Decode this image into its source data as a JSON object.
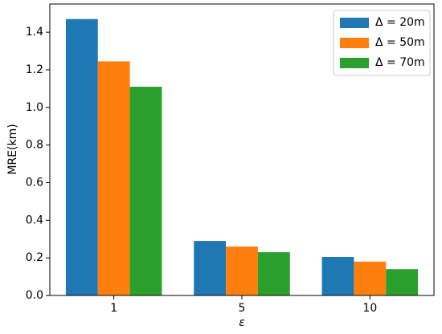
{
  "chart_data": {
    "type": "grouped_bar",
    "x_label": "ε",
    "y_label": "MRE(km)",
    "categories": [
      "1",
      "5",
      "10"
    ],
    "series": [
      {
        "name": "Δ = 20m",
        "color": "#1f77b4",
        "values": [
          1.47,
          0.29,
          0.205
        ]
      },
      {
        "name": "Δ = 50m",
        "color": "#ff7f0e",
        "values": [
          1.245,
          0.26,
          0.18
        ]
      },
      {
        "name": "Δ = 70m",
        "color": "#2ca02c",
        "values": [
          1.11,
          0.23,
          0.14
        ]
      }
    ],
    "ylim": [
      0,
      1.55
    ],
    "yticks": [
      {
        "value": 0,
        "label": "0.0"
      },
      0.2,
      0.4,
      0.6,
      0.8,
      {
        "value": 1,
        "label": "1.0"
      },
      1.2,
      1.4
    ],
    "legend": "upper right",
    "grid": false
  }
}
